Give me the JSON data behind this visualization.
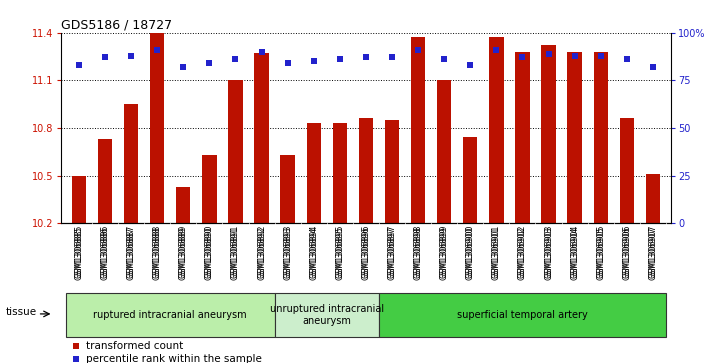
{
  "title": "GDS5186 / 18727",
  "samples": [
    "GSM1306885",
    "GSM1306886",
    "GSM1306887",
    "GSM1306888",
    "GSM1306889",
    "GSM1306890",
    "GSM1306891",
    "GSM1306892",
    "GSM1306893",
    "GSM1306894",
    "GSM1306895",
    "GSM1306896",
    "GSM1306897",
    "GSM1306898",
    "GSM1306899",
    "GSM1306900",
    "GSM1306901",
    "GSM1306902",
    "GSM1306903",
    "GSM1306904",
    "GSM1306905",
    "GSM1306906",
    "GSM1306907"
  ],
  "transformed_count": [
    10.5,
    10.73,
    10.95,
    11.4,
    10.43,
    10.63,
    11.1,
    11.27,
    10.63,
    10.83,
    10.83,
    10.86,
    10.85,
    11.37,
    11.1,
    10.74,
    11.37,
    11.28,
    11.32,
    11.28,
    11.28,
    10.86,
    10.51
  ],
  "percentile_rank": [
    83,
    87,
    88,
    91,
    82,
    84,
    86,
    90,
    84,
    85,
    86,
    87,
    87,
    91,
    86,
    83,
    91,
    87,
    89,
    88,
    88,
    86,
    82
  ],
  "ylim_left": [
    10.2,
    11.4
  ],
  "ylim_right": [
    0,
    100
  ],
  "yticks_left": [
    10.2,
    10.5,
    10.8,
    11.1,
    11.4
  ],
  "yticks_right": [
    0,
    25,
    50,
    75,
    100
  ],
  "ytick_labels_right": [
    "0",
    "25",
    "50",
    "75",
    "100%"
  ],
  "bar_color": "#bb1100",
  "dot_color": "#2222cc",
  "groups": [
    {
      "label": "ruptured intracranial aneurysm",
      "start": 0,
      "end": 7,
      "color": "#bbeeaa"
    },
    {
      "label": "unruptured intracranial\naneurysm",
      "start": 8,
      "end": 11,
      "color": "#cceecc"
    },
    {
      "label": "superficial temporal artery",
      "start": 12,
      "end": 22,
      "color": "#44cc44"
    }
  ],
  "legend_items": [
    {
      "label": "transformed count",
      "color": "#bb1100"
    },
    {
      "label": "percentile rank within the sample",
      "color": "#2222cc"
    }
  ],
  "tissue_label": "tissue",
  "fig_bg_color": "#ffffff",
  "plot_bg_color": "#ffffff",
  "xtick_bg_color": "#dddddd",
  "title_fontsize": 9,
  "tick_fontsize": 7,
  "label_fontsize": 7.5
}
